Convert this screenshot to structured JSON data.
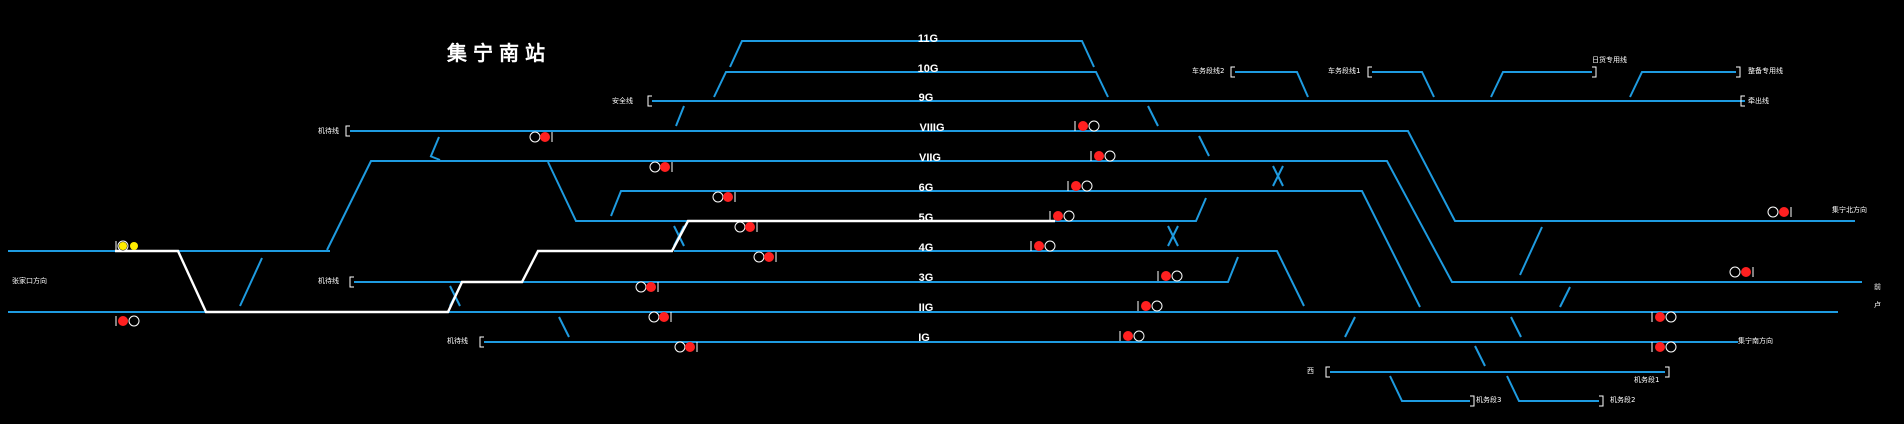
{
  "station": {
    "title": "集宁南站"
  },
  "tracks": [
    {
      "id": "11g",
      "label": "11G"
    },
    {
      "id": "10g",
      "label": "10G"
    },
    {
      "id": "9g",
      "label": "9G"
    },
    {
      "id": "viiig",
      "label": "VIIIG"
    },
    {
      "id": "viig",
      "label": "VIIG"
    },
    {
      "id": "6g",
      "label": "6G"
    },
    {
      "id": "5g",
      "label": "5G"
    },
    {
      "id": "4g",
      "label": "4G"
    },
    {
      "id": "3g",
      "label": "3G"
    },
    {
      "id": "iig",
      "label": "IIG"
    },
    {
      "id": "ig",
      "label": "IG"
    }
  ],
  "labels": {
    "safety_line": "安全线",
    "siding_upper_left": "机待线",
    "siding_mid_left": "机待线",
    "siding_lower_left": "机待线",
    "left_main": "张家口方向",
    "depot_2": "车务段线2",
    "depot_1": "车务段线1",
    "industrial_line": "日货专用线",
    "spur_top_right": "整备专用线",
    "spur_9g_right": "牵出线",
    "right_upper": "集宁北方向",
    "right_lower_1": "前",
    "right_lower_2": "卢",
    "lower_right_1": "集宁南方向",
    "bottom_left_marker": "西",
    "bottom_depot_1": "机务段1",
    "bottom_depot_2": "机务段2",
    "bottom_depot_3": "机务段3"
  },
  "colors": {
    "background": "#000000",
    "track": "#1e9be0",
    "route": "#ffffff",
    "signal_red": "#ff2020",
    "signal_yellow": "#ffee00",
    "text": "#ffffff"
  }
}
